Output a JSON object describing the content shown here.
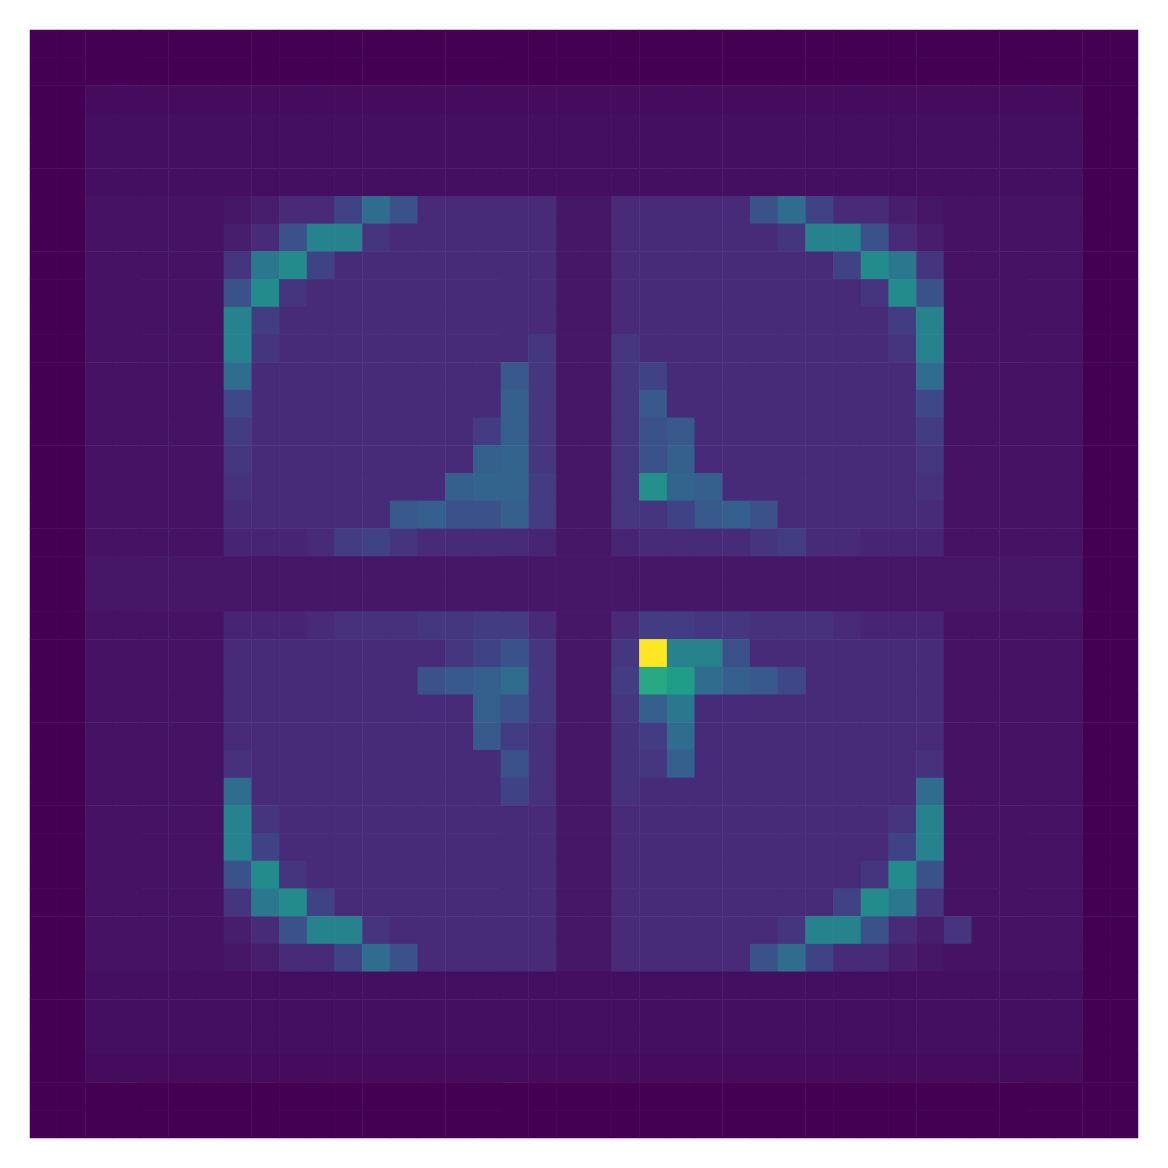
{
  "chart_data": {
    "type": "heatmap",
    "tick_labels": false,
    "zlim": [
      0,
      100
    ],
    "cells": [
      [
        0,
        0,
        0,
        0,
        0,
        0,
        0,
        0,
        0,
        0,
        0,
        0,
        0,
        0,
        0,
        0,
        0,
        0,
        0,
        0,
        0,
        0,
        0,
        0,
        0,
        0,
        0,
        0,
        0,
        0,
        0,
        0,
        0,
        0,
        0,
        0,
        0,
        0,
        0,
        0
      ],
      [
        0,
        0,
        0,
        0,
        0,
        0,
        0,
        0,
        0,
        0,
        0,
        0,
        0,
        0,
        0,
        0,
        0,
        0,
        0,
        0,
        0,
        0,
        0,
        0,
        0,
        0,
        0,
        0,
        0,
        0,
        0,
        0,
        0,
        0,
        0,
        0,
        0,
        0,
        0,
        0
      ],
      [
        0,
        0,
        3,
        3,
        3,
        3,
        3,
        3,
        3,
        3,
        3,
        3,
        3,
        3,
        3,
        3,
        3,
        3,
        3,
        3,
        3,
        3,
        3,
        3,
        3,
        3,
        3,
        3,
        3,
        3,
        3,
        3,
        3,
        3,
        3,
        3,
        3,
        3,
        0,
        0
      ],
      [
        0,
        0,
        4,
        4,
        4,
        4,
        4,
        4,
        4,
        4,
        4,
        4,
        4,
        4,
        4,
        4,
        4,
        4,
        4,
        4,
        4,
        4,
        4,
        4,
        4,
        4,
        4,
        4,
        4,
        4,
        4,
        4,
        4,
        4,
        4,
        4,
        4,
        4,
        0,
        0
      ],
      [
        0,
        0,
        4,
        4,
        4,
        4,
        4,
        4,
        4,
        4,
        4,
        4,
        4,
        4,
        4,
        4,
        4,
        4,
        4,
        4,
        4,
        4,
        4,
        4,
        4,
        4,
        4,
        4,
        4,
        4,
        4,
        4,
        4,
        4,
        4,
        4,
        4,
        4,
        0,
        0
      ],
      [
        0,
        0,
        4,
        4,
        4,
        4,
        4,
        4,
        4,
        4,
        4,
        4,
        4,
        4,
        4,
        4,
        4,
        4,
        4,
        4,
        4,
        4,
        4,
        4,
        4,
        4,
        4,
        4,
        4,
        4,
        4,
        4,
        4,
        4,
        4,
        4,
        4,
        4,
        0,
        0
      ],
      [
        0,
        0,
        5,
        5,
        5,
        5,
        5,
        6,
        8,
        12,
        12,
        20,
        35,
        25,
        12,
        12,
        12,
        12,
        12,
        6,
        6,
        12,
        12,
        12,
        12,
        12,
        25,
        35,
        20,
        12,
        12,
        8,
        6,
        5,
        5,
        5,
        5,
        5,
        0,
        0
      ],
      [
        0,
        0,
        5,
        5,
        5,
        5,
        5,
        8,
        12,
        25,
        45,
        45,
        15,
        12,
        12,
        12,
        12,
        12,
        12,
        6,
        6,
        12,
        12,
        12,
        12,
        12,
        12,
        15,
        45,
        45,
        25,
        12,
        8,
        5,
        5,
        5,
        5,
        5,
        0,
        0
      ],
      [
        0,
        0,
        5,
        5,
        5,
        5,
        5,
        15,
        40,
        48,
        20,
        12,
        12,
        12,
        12,
        12,
        12,
        12,
        12,
        6,
        6,
        12,
        12,
        12,
        12,
        12,
        12,
        12,
        12,
        20,
        48,
        40,
        15,
        5,
        5,
        5,
        5,
        5,
        0,
        0
      ],
      [
        0,
        0,
        5,
        5,
        5,
        5,
        5,
        25,
        48,
        15,
        12,
        12,
        12,
        12,
        12,
        12,
        12,
        12,
        12,
        6,
        6,
        12,
        12,
        12,
        12,
        12,
        12,
        12,
        12,
        12,
        15,
        48,
        25,
        5,
        5,
        5,
        5,
        5,
        0,
        0
      ],
      [
        0,
        0,
        5,
        5,
        5,
        5,
        5,
        45,
        18,
        12,
        12,
        12,
        12,
        12,
        12,
        12,
        12,
        12,
        12,
        6,
        6,
        12,
        12,
        12,
        12,
        12,
        12,
        12,
        12,
        12,
        12,
        18,
        45,
        5,
        5,
        5,
        5,
        5,
        0,
        0
      ],
      [
        0,
        0,
        5,
        5,
        5,
        5,
        5,
        45,
        15,
        12,
        12,
        12,
        12,
        12,
        12,
        12,
        12,
        12,
        16,
        6,
        6,
        16,
        12,
        12,
        12,
        12,
        12,
        12,
        12,
        12,
        12,
        15,
        45,
        5,
        5,
        5,
        5,
        5,
        0,
        0
      ],
      [
        0,
        0,
        5,
        5,
        5,
        5,
        5,
        35,
        12,
        12,
        12,
        12,
        12,
        12,
        12,
        12,
        12,
        28,
        16,
        6,
        6,
        16,
        20,
        12,
        12,
        12,
        12,
        12,
        12,
        12,
        12,
        12,
        35,
        5,
        5,
        5,
        5,
        5,
        0,
        0
      ],
      [
        0,
        0,
        5,
        5,
        5,
        5,
        5,
        22,
        12,
        12,
        12,
        12,
        12,
        12,
        12,
        12,
        12,
        30,
        16,
        6,
        6,
        16,
        28,
        12,
        12,
        12,
        12,
        12,
        12,
        12,
        12,
        12,
        22,
        5,
        5,
        5,
        5,
        5,
        0,
        0
      ],
      [
        0,
        0,
        5,
        5,
        5,
        5,
        5,
        18,
        12,
        12,
        12,
        12,
        12,
        12,
        12,
        12,
        18,
        30,
        16,
        6,
        6,
        16,
        25,
        28,
        12,
        12,
        12,
        12,
        12,
        12,
        12,
        12,
        18,
        5,
        5,
        5,
        5,
        5,
        0,
        0
      ],
      [
        0,
        0,
        5,
        5,
        5,
        5,
        5,
        16,
        12,
        12,
        12,
        12,
        12,
        12,
        12,
        12,
        30,
        32,
        16,
        6,
        6,
        16,
        25,
        30,
        12,
        12,
        12,
        12,
        12,
        12,
        12,
        12,
        16,
        5,
        5,
        5,
        5,
        5,
        0,
        0
      ],
      [
        0,
        0,
        5,
        5,
        5,
        5,
        5,
        14,
        12,
        12,
        12,
        12,
        12,
        12,
        12,
        30,
        32,
        32,
        18,
        6,
        6,
        16,
        50,
        32,
        30,
        12,
        12,
        12,
        12,
        12,
        12,
        12,
        14,
        5,
        5,
        5,
        5,
        5,
        0,
        0
      ],
      [
        0,
        0,
        5,
        5,
        5,
        5,
        5,
        12,
        12,
        12,
        12,
        12,
        12,
        28,
        30,
        25,
        25,
        30,
        18,
        6,
        6,
        16,
        15,
        20,
        28,
        30,
        25,
        12,
        12,
        12,
        12,
        12,
        12,
        5,
        5,
        5,
        5,
        5,
        0,
        0
      ],
      [
        0,
        0,
        5,
        5,
        5,
        5,
        5,
        10,
        10,
        10,
        12,
        18,
        20,
        15,
        12,
        12,
        12,
        12,
        10,
        6,
        6,
        10,
        12,
        12,
        12,
        12,
        15,
        18,
        12,
        12,
        10,
        10,
        10,
        5,
        5,
        5,
        5,
        5,
        0,
        0
      ],
      [
        0,
        0,
        6,
        6,
        6,
        6,
        6,
        6,
        6,
        6,
        6,
        6,
        6,
        6,
        6,
        6,
        6,
        6,
        6,
        6,
        6,
        6,
        6,
        6,
        6,
        6,
        6,
        6,
        6,
        6,
        6,
        6,
        6,
        6,
        6,
        6,
        6,
        6,
        0,
        0
      ],
      [
        0,
        0,
        6,
        6,
        6,
        6,
        6,
        6,
        6,
        6,
        6,
        6,
        6,
        6,
        6,
        6,
        6,
        6,
        6,
        6,
        6,
        6,
        6,
        6,
        6,
        6,
        6,
        6,
        6,
        6,
        6,
        6,
        6,
        6,
        6,
        6,
        6,
        6,
        0,
        0
      ],
      [
        0,
        0,
        5,
        5,
        5,
        5,
        5,
        10,
        10,
        10,
        12,
        14,
        14,
        14,
        16,
        16,
        18,
        18,
        12,
        6,
        6,
        12,
        18,
        18,
        16,
        16,
        14,
        14,
        14,
        12,
        10,
        10,
        10,
        5,
        5,
        5,
        5,
        5,
        0,
        0
      ],
      [
        0,
        0,
        5,
        5,
        5,
        5,
        5,
        12,
        12,
        12,
        12,
        12,
        12,
        12,
        12,
        16,
        20,
        25,
        16,
        6,
        6,
        16,
        100,
        45,
        45,
        25,
        12,
        12,
        12,
        12,
        12,
        12,
        12,
        5,
        5,
        5,
        5,
        5,
        0,
        0
      ],
      [
        0,
        0,
        5,
        5,
        5,
        5,
        5,
        12,
        12,
        12,
        12,
        12,
        12,
        12,
        25,
        28,
        30,
        35,
        16,
        6,
        6,
        18,
        60,
        55,
        35,
        30,
        28,
        22,
        12,
        12,
        12,
        12,
        12,
        5,
        5,
        5,
        5,
        5,
        0,
        0
      ],
      [
        0,
        0,
        5,
        5,
        5,
        5,
        5,
        12,
        12,
        12,
        12,
        12,
        12,
        12,
        12,
        12,
        30,
        25,
        16,
        6,
        6,
        16,
        30,
        40,
        12,
        12,
        12,
        12,
        12,
        12,
        12,
        12,
        12,
        5,
        5,
        5,
        5,
        5,
        0,
        0
      ],
      [
        0,
        0,
        5,
        5,
        5,
        5,
        5,
        12,
        12,
        12,
        12,
        12,
        12,
        12,
        12,
        12,
        28,
        18,
        14,
        6,
        6,
        14,
        18,
        35,
        12,
        12,
        12,
        12,
        12,
        12,
        12,
        12,
        12,
        5,
        5,
        5,
        5,
        5,
        0,
        0
      ],
      [
        0,
        0,
        5,
        5,
        5,
        5,
        5,
        14,
        12,
        12,
        12,
        12,
        12,
        12,
        12,
        12,
        12,
        25,
        14,
        6,
        6,
        14,
        16,
        30,
        12,
        12,
        12,
        12,
        12,
        12,
        12,
        12,
        14,
        5,
        5,
        5,
        5,
        5,
        0,
        0
      ],
      [
        0,
        0,
        5,
        5,
        5,
        5,
        5,
        35,
        12,
        12,
        12,
        12,
        12,
        12,
        12,
        12,
        12,
        20,
        14,
        6,
        6,
        14,
        12,
        12,
        12,
        12,
        12,
        12,
        12,
        12,
        12,
        12,
        35,
        5,
        5,
        5,
        5,
        5,
        0,
        0
      ],
      [
        0,
        0,
        5,
        5,
        5,
        5,
        5,
        45,
        15,
        12,
        12,
        12,
        12,
        12,
        12,
        12,
        12,
        12,
        12,
        6,
        6,
        12,
        12,
        12,
        12,
        12,
        12,
        12,
        12,
        12,
        12,
        15,
        45,
        5,
        5,
        5,
        5,
        5,
        0,
        0
      ],
      [
        0,
        0,
        5,
        5,
        5,
        5,
        5,
        45,
        20,
        12,
        12,
        12,
        12,
        12,
        12,
        12,
        12,
        12,
        12,
        6,
        6,
        12,
        12,
        12,
        12,
        12,
        12,
        12,
        12,
        12,
        12,
        20,
        45,
        5,
        5,
        5,
        5,
        5,
        0,
        0
      ],
      [
        0,
        0,
        5,
        5,
        5,
        5,
        5,
        25,
        48,
        15,
        12,
        12,
        12,
        12,
        12,
        12,
        12,
        12,
        12,
        6,
        6,
        12,
        12,
        12,
        12,
        12,
        12,
        12,
        12,
        12,
        15,
        48,
        25,
        5,
        5,
        5,
        5,
        5,
        0,
        0
      ],
      [
        0,
        0,
        5,
        5,
        5,
        5,
        5,
        15,
        40,
        48,
        20,
        12,
        12,
        12,
        12,
        12,
        12,
        12,
        12,
        6,
        6,
        12,
        12,
        12,
        12,
        12,
        12,
        12,
        12,
        20,
        48,
        40,
        15,
        5,
        5,
        5,
        5,
        5,
        0,
        0
      ],
      [
        0,
        0,
        5,
        5,
        5,
        5,
        5,
        8,
        12,
        25,
        45,
        45,
        15,
        12,
        12,
        12,
        12,
        12,
        12,
        6,
        6,
        12,
        12,
        12,
        12,
        12,
        12,
        15,
        45,
        45,
        25,
        12,
        8,
        15,
        5,
        5,
        5,
        5,
        0,
        0
      ],
      [
        0,
        0,
        5,
        5,
        5,
        5,
        5,
        6,
        8,
        12,
        12,
        20,
        35,
        25,
        12,
        12,
        12,
        12,
        12,
        6,
        6,
        12,
        12,
        12,
        12,
        12,
        25,
        35,
        20,
        12,
        12,
        8,
        6,
        5,
        5,
        5,
        5,
        5,
        0,
        0
      ],
      [
        0,
        0,
        4,
        4,
        4,
        4,
        4,
        4,
        4,
        4,
        4,
        4,
        4,
        4,
        4,
        4,
        4,
        4,
        4,
        4,
        4,
        4,
        4,
        4,
        4,
        4,
        4,
        4,
        4,
        4,
        4,
        4,
        4,
        4,
        4,
        4,
        4,
        4,
        0,
        0
      ],
      [
        0,
        0,
        4,
        4,
        4,
        4,
        4,
        4,
        4,
        4,
        4,
        4,
        4,
        4,
        4,
        4,
        4,
        4,
        4,
        4,
        4,
        4,
        4,
        4,
        4,
        4,
        4,
        4,
        4,
        4,
        4,
        4,
        4,
        4,
        4,
        4,
        4,
        4,
        0,
        0
      ],
      [
        0,
        0,
        4,
        4,
        4,
        4,
        4,
        4,
        4,
        4,
        4,
        4,
        4,
        4,
        4,
        4,
        4,
        4,
        4,
        4,
        4,
        4,
        4,
        4,
        4,
        4,
        4,
        4,
        4,
        4,
        4,
        4,
        4,
        4,
        4,
        4,
        4,
        4,
        0,
        0
      ],
      [
        0,
        0,
        3,
        3,
        3,
        3,
        3,
        3,
        3,
        3,
        3,
        3,
        3,
        3,
        3,
        3,
        3,
        3,
        3,
        3,
        3,
        3,
        3,
        3,
        3,
        3,
        3,
        3,
        3,
        3,
        3,
        3,
        3,
        3,
        3,
        3,
        3,
        3,
        0,
        0
      ],
      [
        0,
        0,
        0,
        0,
        0,
        0,
        0,
        0,
        0,
        0,
        0,
        0,
        0,
        0,
        0,
        0,
        0,
        0,
        0,
        0,
        0,
        0,
        0,
        0,
        0,
        0,
        0,
        0,
        0,
        0,
        0,
        0,
        0,
        0,
        0,
        0,
        0,
        0,
        0,
        0
      ],
      [
        0,
        0,
        0,
        0,
        0,
        0,
        0,
        0,
        0,
        0,
        0,
        0,
        0,
        0,
        0,
        0,
        0,
        0,
        0,
        0,
        0,
        0,
        0,
        0,
        0,
        0,
        0,
        0,
        0,
        0,
        0,
        0,
        0,
        0,
        0,
        0,
        0,
        0,
        0,
        0
      ]
    ]
  }
}
